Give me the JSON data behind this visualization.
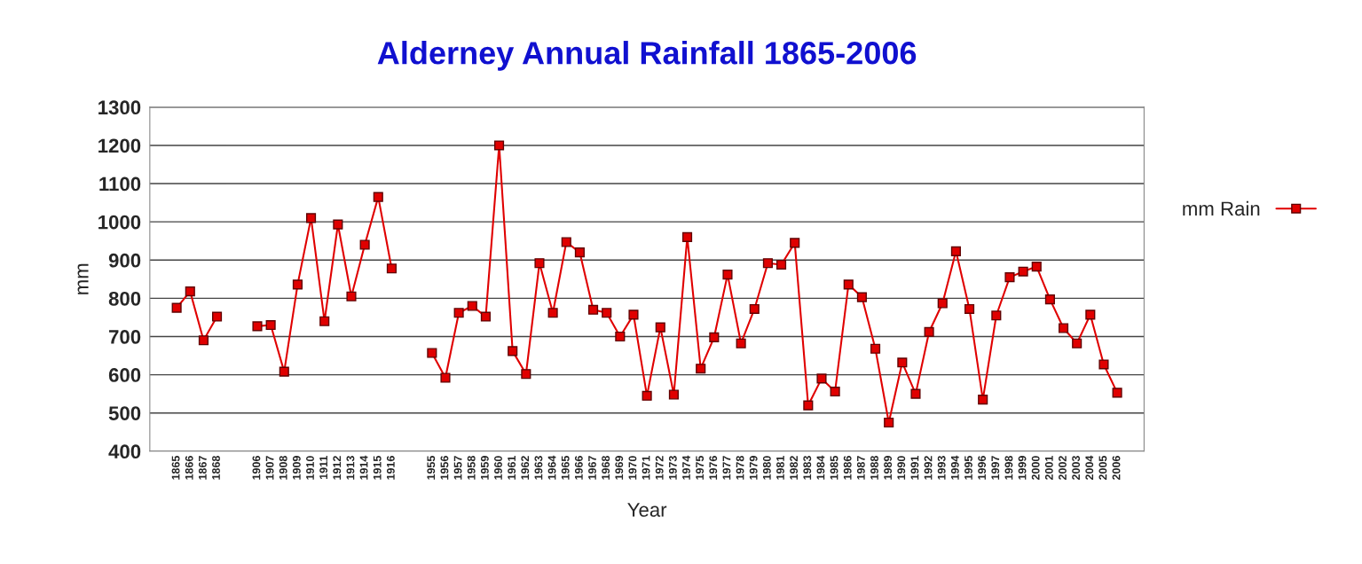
{
  "chart_data": {
    "type": "line",
    "title": "Alderney Annual Rainfall 1865-2006",
    "xlabel": "Year",
    "ylabel": "mm",
    "categories": [
      "1865",
      "1866",
      "1867",
      "1868",
      null,
      null,
      "1906",
      "1907",
      "1908",
      "1909",
      "1910",
      "1911",
      "1912",
      "1913",
      "1914",
      "1915",
      "1916",
      null,
      null,
      "1955",
      "1956",
      "1957",
      "1958",
      "1959",
      "1960",
      "1961",
      "1962",
      "1963",
      "1964",
      "1965",
      "1966",
      "1967",
      "1968",
      "1969",
      "1970",
      "1971",
      "1972",
      "1973",
      "1974",
      "1975",
      "1976",
      "1977",
      "1978",
      "1979",
      "1980",
      "1981",
      "1982",
      "1983",
      "1984",
      "1985",
      "1986",
      "1987",
      "1988",
      "1989",
      "1990",
      "1991",
      "1992",
      "1993",
      "1994",
      "1995",
      "1996",
      "1997",
      "1998",
      "1999",
      "2000",
      "2001",
      "2002",
      "2003",
      "2004",
      "2005",
      "2006"
    ],
    "series": [
      {
        "name": "mm Rain",
        "color": "#e00000",
        "values": [
          775,
          818,
          690,
          752,
          null,
          null,
          727,
          730,
          608,
          836,
          1010,
          740,
          993,
          805,
          940,
          1065,
          878,
          null,
          null,
          657,
          592,
          762,
          780,
          752,
          1200,
          662,
          602,
          892,
          762,
          947,
          920,
          770,
          762,
          700,
          757,
          545,
          724,
          548,
          960,
          616,
          698,
          862,
          682,
          772,
          892,
          888,
          945,
          520,
          590,
          556,
          836,
          803,
          668,
          475,
          632,
          550,
          712,
          787,
          923,
          772,
          535,
          755,
          855,
          870,
          883,
          797,
          722,
          682,
          757,
          627,
          553
        ]
      }
    ],
    "ylim": [
      400,
      1300
    ],
    "yticks": [
      400,
      500,
      600,
      700,
      800,
      900,
      1000,
      1100,
      1200,
      1300
    ],
    "grid": "y",
    "legend": "right",
    "marker": "square",
    "line_style": "solid"
  }
}
